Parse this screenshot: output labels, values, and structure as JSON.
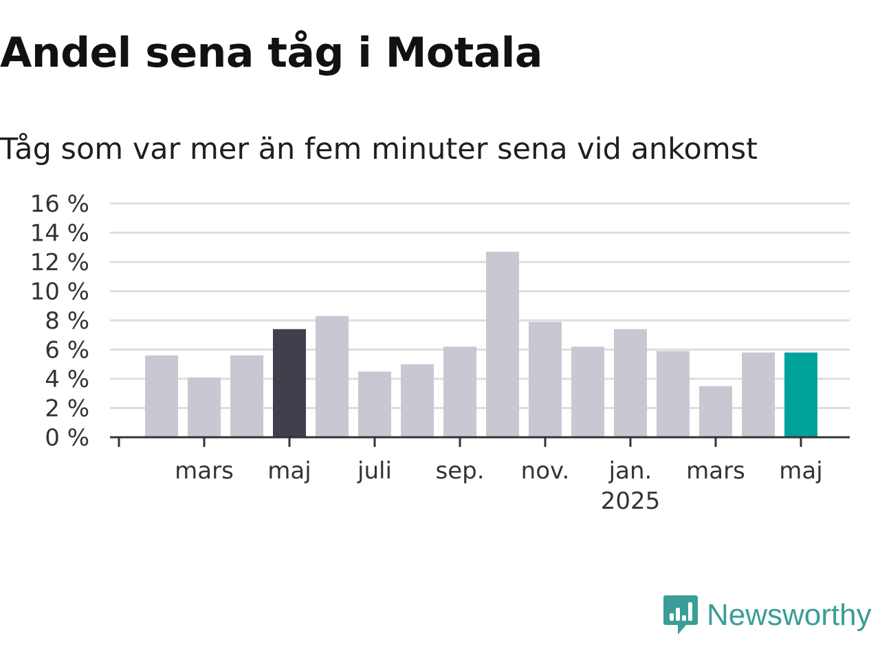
{
  "title": "Andel sena tåg i Motala",
  "subtitle": "Tåg som var mer än fem minuter sena vid ankomst",
  "logo": {
    "text": "Newsworthy",
    "icon": "newsworthy-bar-chart-icon",
    "color": "#3a9d97"
  },
  "chart_data": {
    "type": "bar",
    "title": "Andel sena tåg i Motala",
    "subtitle": "Tåg som var mer än fem minuter sena vid ankomst",
    "xlabel": "",
    "ylabel": "",
    "ylim": [
      0,
      16
    ],
    "grid": true,
    "categories": [
      "2024-02",
      "2024-03",
      "2024-04",
      "2024-05",
      "2024-06",
      "2024-07",
      "2024-08",
      "2024-09",
      "2024-10",
      "2024-11",
      "2024-12",
      "2025-01",
      "2025-02",
      "2025-03",
      "2025-04",
      "2025-05"
    ],
    "values": [
      5.6,
      4.1,
      5.6,
      7.4,
      8.3,
      4.5,
      5.0,
      6.2,
      12.7,
      7.9,
      6.2,
      7.4,
      5.9,
      3.5,
      5.8,
      5.8
    ],
    "highlight": {
      "2024-05": "#423f4c",
      "2025-05": "#00a39a"
    },
    "bar_color": "#c9c8d2",
    "y_ticks": [
      {
        "value": 0,
        "label": "0 %"
      },
      {
        "value": 2,
        "label": "2 %"
      },
      {
        "value": 4,
        "label": "4 %"
      },
      {
        "value": 6,
        "label": "6 %"
      },
      {
        "value": 8,
        "label": "8 %"
      },
      {
        "value": 10,
        "label": "10 %"
      },
      {
        "value": 12,
        "label": "12 %"
      },
      {
        "value": 14,
        "label": "14 %"
      },
      {
        "value": 16,
        "label": "16 %"
      }
    ],
    "x_ticks": [
      {
        "at": "2024-01",
        "label": ""
      },
      {
        "at": "2024-03",
        "label": "mars"
      },
      {
        "at": "2024-05",
        "label": "maj"
      },
      {
        "at": "2024-07",
        "label": "juli"
      },
      {
        "at": "2024-09",
        "label": "sep."
      },
      {
        "at": "2024-11",
        "label": "nov."
      },
      {
        "at": "2025-01",
        "label": "jan.",
        "sublabel": "2025"
      },
      {
        "at": "2025-03",
        "label": "mars"
      },
      {
        "at": "2025-05",
        "label": "maj"
      }
    ]
  }
}
